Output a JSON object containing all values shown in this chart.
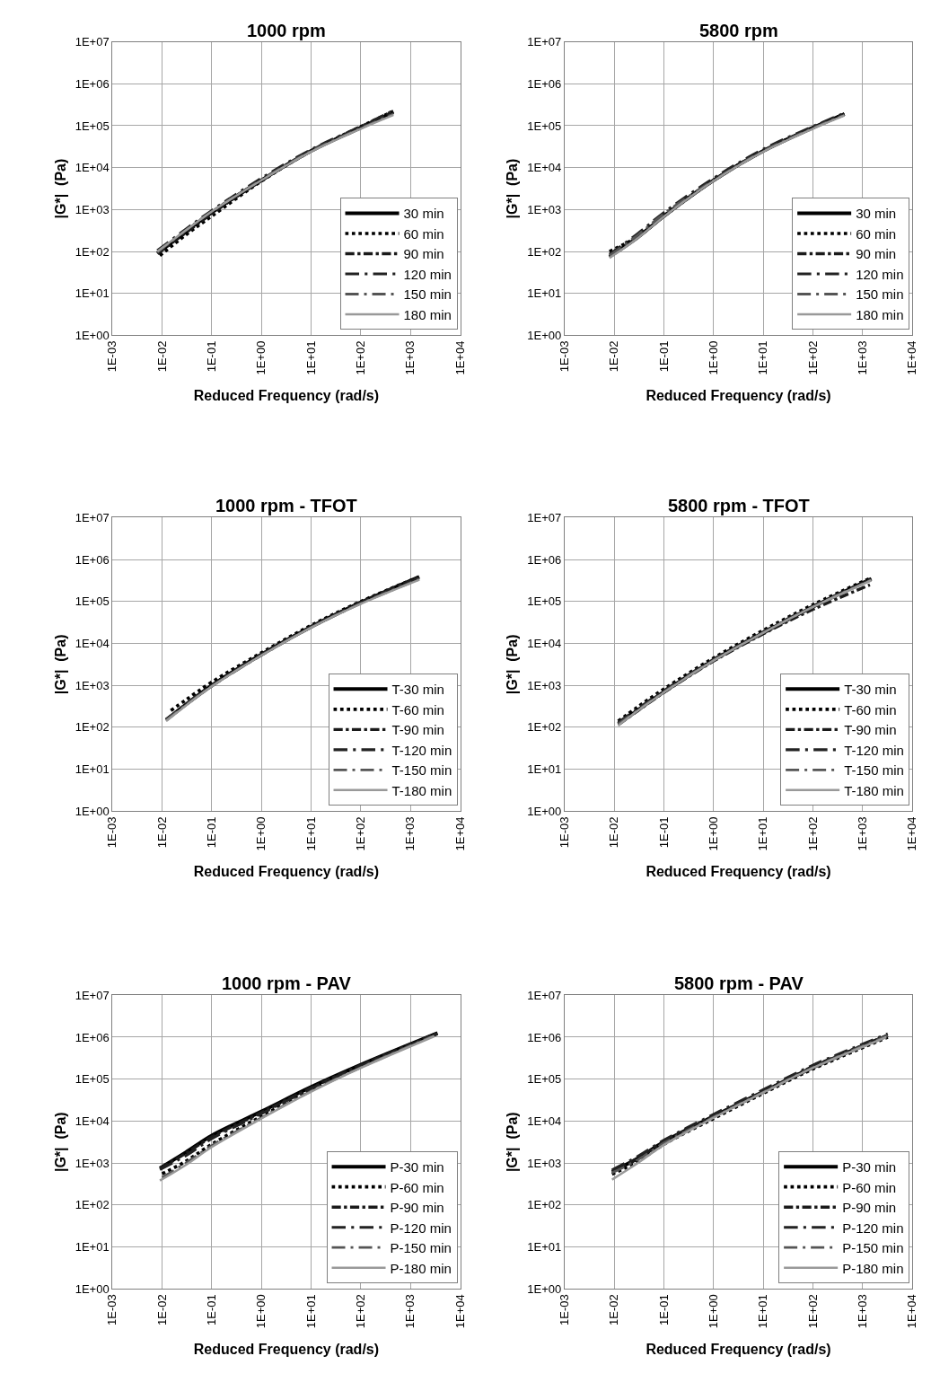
{
  "chart_data": [
    {
      "type": "line",
      "title": "1000 rpm",
      "xlabel": "Reduced Frequency (rad/s)",
      "ylabel": "|G*|  (Pa)",
      "log": "xy",
      "grid": true,
      "legend": "bottom right",
      "xlim": [
        0.001,
        10000
      ],
      "ylim": [
        1,
        10000000
      ],
      "xticks": [
        {
          "value": 0.001,
          "label": "1E-03"
        },
        {
          "value": 0.01,
          "label": "1E-02"
        },
        {
          "value": 0.1,
          "label": "1E-01"
        },
        {
          "value": 1,
          "label": "1E+00"
        },
        {
          "value": 10,
          "label": "1E+01"
        },
        {
          "value": 100,
          "label": "1E+02"
        },
        {
          "value": 1000,
          "label": "1E+03"
        },
        {
          "value": 10000,
          "label": "1E+04"
        }
      ],
      "yticks": [
        {
          "value": 1,
          "label": "1E+00"
        },
        {
          "value": 10,
          "label": "1E+01"
        },
        {
          "value": 100,
          "label": "1E+02"
        },
        {
          "value": 1000,
          "label": "1E+03"
        },
        {
          "value": 10000,
          "label": "1E+04"
        },
        {
          "value": 100000,
          "label": "1E+05"
        },
        {
          "value": 1000000,
          "label": "1E+06"
        },
        {
          "value": 10000000,
          "label": "1E+07"
        }
      ],
      "series": [
        {
          "name": "30 min",
          "color": "#000000",
          "line_style": "solid",
          "x": [
            0.008,
            0.03,
            0.1,
            1,
            10,
            100,
            450
          ],
          "values": [
            90,
            300,
            850,
            5000,
            25000,
            90000,
            210000
          ]
        },
        {
          "name": "60 min",
          "color": "#000000",
          "line_style": "dotted",
          "x": [
            0.009,
            0.03,
            0.1,
            1,
            10,
            100,
            450
          ],
          "values": [
            80,
            250,
            700,
            4800,
            25000,
            95000,
            220000
          ]
        },
        {
          "name": "90 min",
          "color": "#1a1a1a",
          "line_style": "dashdot",
          "x": [
            0.008,
            0.03,
            0.1,
            1,
            10,
            100,
            450
          ],
          "values": [
            90,
            280,
            800,
            5000,
            25000,
            92000,
            215000
          ]
        },
        {
          "name": "120 min",
          "color": "#222222",
          "line_style": "longdashdot",
          "x": [
            0.008,
            0.03,
            0.1,
            1,
            10,
            100,
            450
          ],
          "values": [
            105,
            340,
            950,
            5600,
            27000,
            96000,
            230000
          ]
        },
        {
          "name": "150 min",
          "color": "#555555",
          "line_style": "longdashdot",
          "x": [
            0.008,
            0.03,
            0.1,
            1,
            10,
            100,
            450
          ],
          "values": [
            95,
            320,
            900,
            5200,
            25000,
            88000,
            190000
          ]
        },
        {
          "name": "180 min",
          "color": "#999999",
          "line_style": "solid",
          "x": [
            0.008,
            0.03,
            0.1,
            1,
            10,
            100,
            450
          ],
          "values": [
            100,
            320,
            900,
            5000,
            24000,
            85000,
            180000
          ]
        }
      ]
    },
    {
      "type": "line",
      "title": "5800 rpm",
      "xlabel": "Reduced Frequency (rad/s)",
      "ylabel": "|G*|  (Pa)",
      "log": "xy",
      "grid": true,
      "legend": "bottom right",
      "xlim": [
        0.001,
        10000
      ],
      "ylim": [
        1,
        10000000
      ],
      "xticks": [
        {
          "value": 0.001,
          "label": "1E-03"
        },
        {
          "value": 0.01,
          "label": "1E-02"
        },
        {
          "value": 0.1,
          "label": "1E-01"
        },
        {
          "value": 1,
          "label": "1E+00"
        },
        {
          "value": 10,
          "label": "1E+01"
        },
        {
          "value": 100,
          "label": "1E+02"
        },
        {
          "value": 1000,
          "label": "1E+03"
        },
        {
          "value": 10000,
          "label": "1E+04"
        }
      ],
      "yticks": [
        {
          "value": 1,
          "label": "1E+00"
        },
        {
          "value": 10,
          "label": "1E+01"
        },
        {
          "value": 100,
          "label": "1E+02"
        },
        {
          "value": 1000,
          "label": "1E+03"
        },
        {
          "value": 10000,
          "label": "1E+04"
        },
        {
          "value": 100000,
          "label": "1E+05"
        },
        {
          "value": 1000000,
          "label": "1E+06"
        },
        {
          "value": 10000000,
          "label": "1E+07"
        }
      ],
      "series": [
        {
          "name": "30 min",
          "color": "#000000",
          "line_style": "solid",
          "x": [
            0.008,
            0.03,
            0.1,
            1,
            10,
            100,
            430
          ],
          "values": [
            75,
            220,
            700,
            5000,
            25000,
            90000,
            190000
          ]
        },
        {
          "name": "60 min",
          "color": "#000000",
          "line_style": "dotted",
          "x": [
            0.008,
            0.03,
            0.1,
            1,
            10,
            100,
            430
          ],
          "values": [
            100,
            230,
            700,
            5000,
            25000,
            90000,
            190000
          ]
        },
        {
          "name": "90 min",
          "color": "#1a1a1a",
          "line_style": "dashdot",
          "x": [
            0.008,
            0.03,
            0.1,
            1,
            10,
            100,
            430
          ],
          "values": [
            75,
            220,
            700,
            5000,
            25000,
            90000,
            190000
          ]
        },
        {
          "name": "120 min",
          "color": "#222222",
          "line_style": "longdashdot",
          "x": [
            0.008,
            0.03,
            0.1,
            1,
            10,
            100,
            430
          ],
          "values": [
            85,
            270,
            850,
            5600,
            27500,
            96000,
            200000
          ]
        },
        {
          "name": "150 min",
          "color": "#555555",
          "line_style": "longdashdot",
          "x": [
            0.008,
            0.03,
            0.1,
            1,
            10,
            100,
            430
          ],
          "values": [
            80,
            250,
            800,
            5000,
            25000,
            88000,
            180000
          ]
        },
        {
          "name": "180 min",
          "color": "#999999",
          "line_style": "solid",
          "x": [
            0.008,
            0.03,
            0.1,
            1,
            10,
            100,
            430
          ],
          "values": [
            70,
            210,
            680,
            4800,
            24000,
            85000,
            175000
          ]
        }
      ]
    },
    {
      "type": "line",
      "title": "1000 rpm - TFOT",
      "xlabel": "Reduced Frequency (rad/s)",
      "ylabel": "|G*|  (Pa)",
      "log": "xy",
      "grid": true,
      "legend": "bottom right",
      "xlim": [
        0.001,
        10000
      ],
      "ylim": [
        1,
        10000000
      ],
      "xticks": [
        {
          "value": 0.001,
          "label": "1E-03"
        },
        {
          "value": 0.01,
          "label": "1E-02"
        },
        {
          "value": 0.1,
          "label": "1E-01"
        },
        {
          "value": 1,
          "label": "1E+00"
        },
        {
          "value": 10,
          "label": "1E+01"
        },
        {
          "value": 100,
          "label": "1E+02"
        },
        {
          "value": 1000,
          "label": "1E+03"
        },
        {
          "value": 10000,
          "label": "1E+04"
        }
      ],
      "yticks": [
        {
          "value": 1,
          "label": "1E+00"
        },
        {
          "value": 10,
          "label": "1E+01"
        },
        {
          "value": 100,
          "label": "1E+02"
        },
        {
          "value": 1000,
          "label": "1E+03"
        },
        {
          "value": 10000,
          "label": "1E+04"
        },
        {
          "value": 100000,
          "label": "1E+05"
        },
        {
          "value": 1000000,
          "label": "1E+06"
        },
        {
          "value": 10000000,
          "label": "1E+07"
        }
      ],
      "series": [
        {
          "name": "T-30 min",
          "color": "#000000",
          "line_style": "solid",
          "x": [
            0.012,
            0.03,
            0.1,
            1,
            10,
            100,
            1500
          ],
          "values": [
            150,
            350,
            1000,
            5500,
            25000,
            95000,
            390000
          ]
        },
        {
          "name": "T-60 min",
          "color": "#000000",
          "line_style": "dotted",
          "x": [
            0.015,
            0.03,
            0.1,
            1,
            10,
            100,
            1600
          ],
          "values": [
            250,
            450,
            1200,
            6000,
            27000,
            100000,
            400000
          ]
        },
        {
          "name": "T-90 min",
          "color": "#1a1a1a",
          "line_style": "dashdot",
          "x": [
            0.012,
            0.03,
            0.1,
            1,
            10,
            100,
            1500
          ],
          "values": [
            150,
            350,
            1000,
            5500,
            25000,
            95000,
            380000
          ]
        },
        {
          "name": "T-120 min",
          "color": "#222222",
          "line_style": "longdashdot",
          "x": [
            0.012,
            0.03,
            0.1,
            1,
            10,
            100,
            1500
          ],
          "values": [
            150,
            350,
            1000,
            5500,
            25000,
            95000,
            370000
          ]
        },
        {
          "name": "T-150 min",
          "color": "#555555",
          "line_style": "longdashdot",
          "x": [
            0.012,
            0.03,
            0.1,
            1,
            10,
            100,
            1500
          ],
          "values": [
            150,
            340,
            950,
            5200,
            24000,
            90000,
            340000
          ]
        },
        {
          "name": "T-180 min",
          "color": "#999999",
          "line_style": "solid",
          "x": [
            0.012,
            0.03,
            0.1,
            1,
            10,
            100,
            1500
          ],
          "values": [
            140,
            330,
            950,
            5200,
            24000,
            88000,
            330000
          ]
        }
      ]
    },
    {
      "type": "line",
      "title": "5800 rpm - TFOT",
      "xlabel": "Reduced Frequency (rad/s)",
      "ylabel": "|G*|  (Pa)",
      "log": "xy",
      "grid": true,
      "legend": "bottom right",
      "xlim": [
        0.001,
        10000
      ],
      "ylim": [
        1,
        10000000
      ],
      "xticks": [
        {
          "value": 0.001,
          "label": "1E-03"
        },
        {
          "value": 0.01,
          "label": "1E-02"
        },
        {
          "value": 0.1,
          "label": "1E-01"
        },
        {
          "value": 1,
          "label": "1E+00"
        },
        {
          "value": 10,
          "label": "1E+01"
        },
        {
          "value": 100,
          "label": "1E+02"
        },
        {
          "value": 1000,
          "label": "1E+03"
        },
        {
          "value": 10000,
          "label": "1E+04"
        }
      ],
      "yticks": [
        {
          "value": 1,
          "label": "1E+00"
        },
        {
          "value": 10,
          "label": "1E+01"
        },
        {
          "value": 100,
          "label": "1E+02"
        },
        {
          "value": 1000,
          "label": "1E+03"
        },
        {
          "value": 10000,
          "label": "1E+04"
        },
        {
          "value": 100000,
          "label": "1E+05"
        },
        {
          "value": 1000000,
          "label": "1E+06"
        },
        {
          "value": 10000000,
          "label": "1E+07"
        }
      ],
      "series": [
        {
          "name": "T-30 min",
          "color": "#000000",
          "line_style": "solid",
          "x": [
            0.012,
            0.03,
            0.1,
            1,
            10,
            100,
            1500
          ],
          "values": [
            120,
            260,
            700,
            4000,
            18000,
            75000,
            350000
          ]
        },
        {
          "name": "T-60 min",
          "color": "#000000",
          "line_style": "dotted",
          "x": [
            0.012,
            0.03,
            0.1,
            1,
            10,
            100,
            1500
          ],
          "values": [
            140,
            310,
            820,
            4500,
            20500,
            84000,
            370000
          ]
        },
        {
          "name": "T-90 min",
          "color": "#1a1a1a",
          "line_style": "dashdot",
          "x": [
            0.012,
            0.03,
            0.1,
            1,
            10,
            100,
            1400
          ],
          "values": [
            115,
            250,
            680,
            3800,
            17000,
            65000,
            250000
          ]
        },
        {
          "name": "T-120 min",
          "color": "#222222",
          "line_style": "longdashdot",
          "x": [
            0.012,
            0.03,
            0.1,
            1,
            10,
            100,
            1500
          ],
          "values": [
            130,
            280,
            750,
            4200,
            19000,
            78000,
            340000
          ]
        },
        {
          "name": "T-150 min",
          "color": "#555555",
          "line_style": "longdashdot",
          "x": [
            0.012,
            0.03,
            0.1,
            1,
            10,
            100,
            1500
          ],
          "values": [
            120,
            260,
            700,
            4000,
            18000,
            75000,
            330000
          ]
        },
        {
          "name": "T-180 min",
          "color": "#999999",
          "line_style": "solid",
          "x": [
            0.012,
            0.03,
            0.1,
            1,
            10,
            100,
            1500
          ],
          "values": [
            110,
            250,
            680,
            3900,
            18000,
            74000,
            320000
          ]
        }
      ]
    },
    {
      "type": "line",
      "title": "1000 rpm - PAV",
      "xlabel": "Reduced Frequency (rad/s)",
      "ylabel": "|G*|  (Pa)",
      "log": "xy",
      "grid": true,
      "legend": "bottom right",
      "xlim": [
        0.001,
        10000
      ],
      "ylim": [
        1,
        10000000
      ],
      "xticks": [
        {
          "value": 0.001,
          "label": "1E-03"
        },
        {
          "value": 0.01,
          "label": "1E-02"
        },
        {
          "value": 0.1,
          "label": "1E-01"
        },
        {
          "value": 1,
          "label": "1E+00"
        },
        {
          "value": 10,
          "label": "1E+01"
        },
        {
          "value": 100,
          "label": "1E+02"
        },
        {
          "value": 1000,
          "label": "1E+03"
        },
        {
          "value": 10000,
          "label": "1E+04"
        }
      ],
      "yticks": [
        {
          "value": 1,
          "label": "1E+00"
        },
        {
          "value": 10,
          "label": "1E+01"
        },
        {
          "value": 100,
          "label": "1E+02"
        },
        {
          "value": 1000,
          "label": "1E+03"
        },
        {
          "value": 10000,
          "label": "1E+04"
        },
        {
          "value": 100000,
          "label": "1E+05"
        },
        {
          "value": 1000000,
          "label": "1E+06"
        },
        {
          "value": 10000000,
          "label": "1E+07"
        }
      ],
      "series": [
        {
          "name": "P-30 min",
          "color": "#000000",
          "line_style": "solid",
          "x": [
            0.009,
            0.03,
            0.1,
            1,
            10,
            100,
            3500
          ],
          "values": [
            750,
            1800,
            4500,
            17000,
            65000,
            220000,
            1250000
          ]
        },
        {
          "name": "P-60 min",
          "color": "#000000",
          "line_style": "dotted",
          "x": [
            0.01,
            0.03,
            0.1,
            1,
            10,
            100,
            3000
          ],
          "values": [
            550,
            1100,
            2800,
            13000,
            55000,
            200000,
            1150000
          ]
        },
        {
          "name": "P-90 min",
          "color": "#1a1a1a",
          "line_style": "dashdot",
          "x": [
            0.009,
            0.03,
            0.1,
            1,
            10,
            100,
            3500
          ],
          "values": [
            750,
            1700,
            4200,
            16000,
            62000,
            215000,
            1250000
          ]
        },
        {
          "name": "P-120 min",
          "color": "#222222",
          "line_style": "longdashdot",
          "x": [
            0.009,
            0.03,
            0.1,
            1,
            10,
            100,
            3500
          ],
          "values": [
            700,
            1500,
            3800,
            15000,
            60000,
            210000,
            1200000
          ]
        },
        {
          "name": "P-150 min",
          "color": "#555555",
          "line_style": "longdashdot",
          "x": [
            0.01,
            0.03,
            0.1,
            1,
            10,
            100,
            3000
          ],
          "values": [
            450,
            1000,
            2600,
            12000,
            52000,
            190000,
            1100000
          ]
        },
        {
          "name": "P-180 min",
          "color": "#999999",
          "line_style": "solid",
          "x": [
            0.009,
            0.03,
            0.1,
            1,
            10,
            100,
            3000
          ],
          "values": [
            380,
            900,
            2400,
            11500,
            50000,
            185000,
            1050000
          ]
        }
      ]
    },
    {
      "type": "line",
      "title": "5800 rpm - PAV",
      "xlabel": "Reduced Frequency (rad/s)",
      "ylabel": "|G*|  (Pa)",
      "log": "xy",
      "grid": true,
      "legend": "bottom right",
      "xlim": [
        0.001,
        10000
      ],
      "ylim": [
        1,
        10000000
      ],
      "xticks": [
        {
          "value": 0.001,
          "label": "1E-03"
        },
        {
          "value": 0.01,
          "label": "1E-02"
        },
        {
          "value": 0.1,
          "label": "1E-01"
        },
        {
          "value": 1,
          "label": "1E+00"
        },
        {
          "value": 10,
          "label": "1E+01"
        },
        {
          "value": 100,
          "label": "1E+02"
        },
        {
          "value": 1000,
          "label": "1E+03"
        },
        {
          "value": 10000,
          "label": "1E+04"
        }
      ],
      "yticks": [
        {
          "value": 1,
          "label": "1E+00"
        },
        {
          "value": 10,
          "label": "1E+01"
        },
        {
          "value": 100,
          "label": "1E+02"
        },
        {
          "value": 1000,
          "label": "1E+03"
        },
        {
          "value": 10000,
          "label": "1E+04"
        },
        {
          "value": 100000,
          "label": "1E+05"
        },
        {
          "value": 1000000,
          "label": "1E+06"
        },
        {
          "value": 10000000,
          "label": "1E+07"
        }
      ],
      "series": [
        {
          "name": "P-30 min",
          "color": "#000000",
          "line_style": "solid",
          "x": [
            0.009,
            0.03,
            0.1,
            1,
            10,
            100,
            3200
          ],
          "values": [
            620,
            1300,
            3200,
            13000,
            50000,
            190000,
            1100000
          ]
        },
        {
          "name": "P-60 min",
          "color": "#000000",
          "line_style": "dotted",
          "x": [
            0.009,
            0.03,
            0.1,
            1,
            10,
            100,
            3200
          ],
          "values": [
            540,
            1100,
            2800,
            11500,
            46000,
            175000,
            1000000
          ]
        },
        {
          "name": "P-90 min",
          "color": "#1a1a1a",
          "line_style": "dashdot",
          "x": [
            0.009,
            0.03,
            0.1,
            1,
            10,
            100,
            3200
          ],
          "values": [
            620,
            1300,
            3200,
            13000,
            50000,
            200000,
            1100000
          ]
        },
        {
          "name": "P-120 min",
          "color": "#222222",
          "line_style": "longdashdot",
          "x": [
            0.009,
            0.03,
            0.1,
            1,
            10,
            100,
            3200
          ],
          "values": [
            680,
            1450,
            3500,
            14500,
            56000,
            215000,
            1200000
          ]
        },
        {
          "name": "P-150 min",
          "color": "#555555",
          "line_style": "longdashdot",
          "x": [
            0.009,
            0.03,
            0.1,
            1,
            10,
            100,
            3200
          ],
          "values": [
            580,
            1200,
            3000,
            12500,
            49000,
            190000,
            1100000
          ]
        },
        {
          "name": "P-180 min",
          "color": "#999999",
          "line_style": "solid",
          "x": [
            0.009,
            0.03,
            0.1,
            1,
            10,
            100,
            3000
          ],
          "values": [
            400,
            1000,
            2700,
            12000,
            48000,
            185000,
            1000000
          ]
        }
      ]
    }
  ]
}
